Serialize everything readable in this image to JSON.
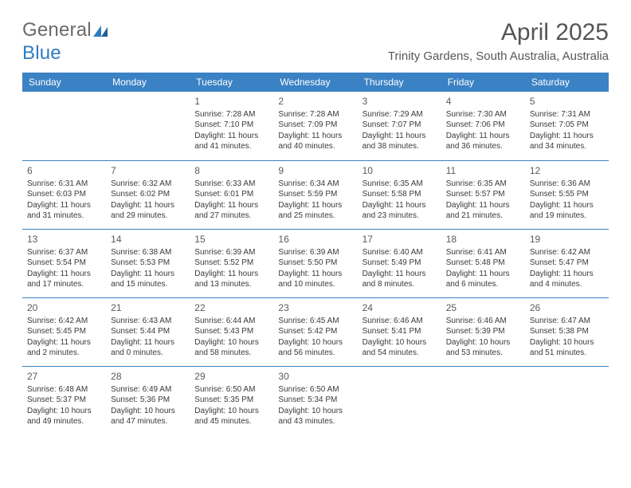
{
  "logo": {
    "word1": "General",
    "word2": "Blue"
  },
  "title": "April 2025",
  "subtitle": "Trinity Gardens, South Australia, Australia",
  "day_headers": [
    "Sunday",
    "Monday",
    "Tuesday",
    "Wednesday",
    "Thursday",
    "Friday",
    "Saturday"
  ],
  "colors": {
    "header_bg": "#3b82c4",
    "header_text": "#ffffff",
    "divider": "#3b82c4",
    "logo_gray": "#6a6a6a",
    "logo_blue": "#2f7bc2",
    "title_color": "#555555",
    "subtitle_color": "#575757",
    "cell_text": "#3a3a3a"
  },
  "fonts": {
    "title_size": 30,
    "subtitle_size": 15,
    "header_size": 12,
    "daynum_size": 12,
    "body_size": 10
  },
  "weeks": [
    [
      null,
      null,
      {
        "num": "1",
        "sunrise": "Sunrise: 7:28 AM",
        "sunset": "Sunset: 7:10 PM",
        "daylight": "Daylight: 11 hours and 41 minutes."
      },
      {
        "num": "2",
        "sunrise": "Sunrise: 7:28 AM",
        "sunset": "Sunset: 7:09 PM",
        "daylight": "Daylight: 11 hours and 40 minutes."
      },
      {
        "num": "3",
        "sunrise": "Sunrise: 7:29 AM",
        "sunset": "Sunset: 7:07 PM",
        "daylight": "Daylight: 11 hours and 38 minutes."
      },
      {
        "num": "4",
        "sunrise": "Sunrise: 7:30 AM",
        "sunset": "Sunset: 7:06 PM",
        "daylight": "Daylight: 11 hours and 36 minutes."
      },
      {
        "num": "5",
        "sunrise": "Sunrise: 7:31 AM",
        "sunset": "Sunset: 7:05 PM",
        "daylight": "Daylight: 11 hours and 34 minutes."
      }
    ],
    [
      {
        "num": "6",
        "sunrise": "Sunrise: 6:31 AM",
        "sunset": "Sunset: 6:03 PM",
        "daylight": "Daylight: 11 hours and 31 minutes."
      },
      {
        "num": "7",
        "sunrise": "Sunrise: 6:32 AM",
        "sunset": "Sunset: 6:02 PM",
        "daylight": "Daylight: 11 hours and 29 minutes."
      },
      {
        "num": "8",
        "sunrise": "Sunrise: 6:33 AM",
        "sunset": "Sunset: 6:01 PM",
        "daylight": "Daylight: 11 hours and 27 minutes."
      },
      {
        "num": "9",
        "sunrise": "Sunrise: 6:34 AM",
        "sunset": "Sunset: 5:59 PM",
        "daylight": "Daylight: 11 hours and 25 minutes."
      },
      {
        "num": "10",
        "sunrise": "Sunrise: 6:35 AM",
        "sunset": "Sunset: 5:58 PM",
        "daylight": "Daylight: 11 hours and 23 minutes."
      },
      {
        "num": "11",
        "sunrise": "Sunrise: 6:35 AM",
        "sunset": "Sunset: 5:57 PM",
        "daylight": "Daylight: 11 hours and 21 minutes."
      },
      {
        "num": "12",
        "sunrise": "Sunrise: 6:36 AM",
        "sunset": "Sunset: 5:55 PM",
        "daylight": "Daylight: 11 hours and 19 minutes."
      }
    ],
    [
      {
        "num": "13",
        "sunrise": "Sunrise: 6:37 AM",
        "sunset": "Sunset: 5:54 PM",
        "daylight": "Daylight: 11 hours and 17 minutes."
      },
      {
        "num": "14",
        "sunrise": "Sunrise: 6:38 AM",
        "sunset": "Sunset: 5:53 PM",
        "daylight": "Daylight: 11 hours and 15 minutes."
      },
      {
        "num": "15",
        "sunrise": "Sunrise: 6:39 AM",
        "sunset": "Sunset: 5:52 PM",
        "daylight": "Daylight: 11 hours and 13 minutes."
      },
      {
        "num": "16",
        "sunrise": "Sunrise: 6:39 AM",
        "sunset": "Sunset: 5:50 PM",
        "daylight": "Daylight: 11 hours and 10 minutes."
      },
      {
        "num": "17",
        "sunrise": "Sunrise: 6:40 AM",
        "sunset": "Sunset: 5:49 PM",
        "daylight": "Daylight: 11 hours and 8 minutes."
      },
      {
        "num": "18",
        "sunrise": "Sunrise: 6:41 AM",
        "sunset": "Sunset: 5:48 PM",
        "daylight": "Daylight: 11 hours and 6 minutes."
      },
      {
        "num": "19",
        "sunrise": "Sunrise: 6:42 AM",
        "sunset": "Sunset: 5:47 PM",
        "daylight": "Daylight: 11 hours and 4 minutes."
      }
    ],
    [
      {
        "num": "20",
        "sunrise": "Sunrise: 6:42 AM",
        "sunset": "Sunset: 5:45 PM",
        "daylight": "Daylight: 11 hours and 2 minutes."
      },
      {
        "num": "21",
        "sunrise": "Sunrise: 6:43 AM",
        "sunset": "Sunset: 5:44 PM",
        "daylight": "Daylight: 11 hours and 0 minutes."
      },
      {
        "num": "22",
        "sunrise": "Sunrise: 6:44 AM",
        "sunset": "Sunset: 5:43 PM",
        "daylight": "Daylight: 10 hours and 58 minutes."
      },
      {
        "num": "23",
        "sunrise": "Sunrise: 6:45 AM",
        "sunset": "Sunset: 5:42 PM",
        "daylight": "Daylight: 10 hours and 56 minutes."
      },
      {
        "num": "24",
        "sunrise": "Sunrise: 6:46 AM",
        "sunset": "Sunset: 5:41 PM",
        "daylight": "Daylight: 10 hours and 54 minutes."
      },
      {
        "num": "25",
        "sunrise": "Sunrise: 6:46 AM",
        "sunset": "Sunset: 5:39 PM",
        "daylight": "Daylight: 10 hours and 53 minutes."
      },
      {
        "num": "26",
        "sunrise": "Sunrise: 6:47 AM",
        "sunset": "Sunset: 5:38 PM",
        "daylight": "Daylight: 10 hours and 51 minutes."
      }
    ],
    [
      {
        "num": "27",
        "sunrise": "Sunrise: 6:48 AM",
        "sunset": "Sunset: 5:37 PM",
        "daylight": "Daylight: 10 hours and 49 minutes."
      },
      {
        "num": "28",
        "sunrise": "Sunrise: 6:49 AM",
        "sunset": "Sunset: 5:36 PM",
        "daylight": "Daylight: 10 hours and 47 minutes."
      },
      {
        "num": "29",
        "sunrise": "Sunrise: 6:50 AM",
        "sunset": "Sunset: 5:35 PM",
        "daylight": "Daylight: 10 hours and 45 minutes."
      },
      {
        "num": "30",
        "sunrise": "Sunrise: 6:50 AM",
        "sunset": "Sunset: 5:34 PM",
        "daylight": "Daylight: 10 hours and 43 minutes."
      },
      null,
      null,
      null
    ]
  ]
}
